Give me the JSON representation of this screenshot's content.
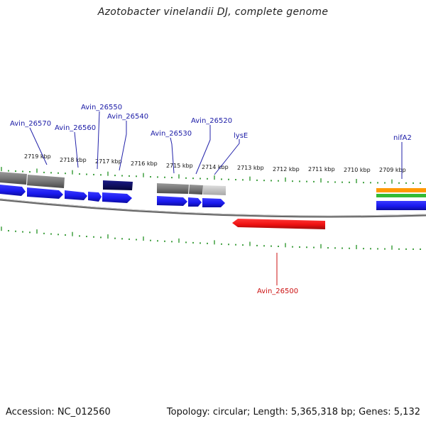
{
  "title": "Azotobacter vinelandii DJ, complete genome",
  "footer": {
    "accession": "Accession: NC_012560",
    "summary": "Topology: circular; Length: 5,365,318 bp; Genes: 5,132"
  },
  "scale_ticks": [
    "2719 kbp",
    "2718 kbp",
    "2717 kbp",
    "2716 kbp",
    "2715 kbp",
    "2714 kbp",
    "2713 kbp",
    "2712 kbp",
    "2711 kbp",
    "2710 kbp",
    "2709 kbp"
  ],
  "gene_labels": [
    {
      "name": "Avin_26570",
      "color": "#1a1aa6"
    },
    {
      "name": "Avin_26560",
      "color": "#1a1aa6"
    },
    {
      "name": "Avin_26550",
      "color": "#1a1aa6"
    },
    {
      "name": "Avin_26540",
      "color": "#1a1aa6"
    },
    {
      "name": "Avin_26530",
      "color": "#1a1aa6"
    },
    {
      "name": "Avin_26520",
      "color": "#1a1aa6"
    },
    {
      "name": "lysE",
      "color": "#1a1aa6"
    },
    {
      "name": "nifA2",
      "color": "#1a1aa6"
    },
    {
      "name": "Avin_26500",
      "color": "#cc1111"
    }
  ],
  "colors": {
    "forward_gene": "#1a1aee",
    "reverse_gene": "#ee1111",
    "dark_feature": "#0a0a66",
    "gray_feature": "#777777",
    "light_feature": "#c4c4c4",
    "orange_feature": "#ff9900",
    "green_feature": "#33bb33",
    "tick": "#118811",
    "backbone": "#777777"
  }
}
